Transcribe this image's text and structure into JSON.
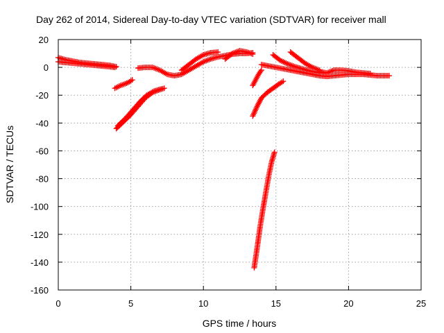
{
  "chart_data": {
    "type": "scatter",
    "title": "Day 262 of 2014, Sidereal Day-to-day VTEC variation (SDTVAR) for receiver mall",
    "xlabel": "GPS time / hours",
    "ylabel": "SDTVAR / TECUs",
    "xlim": [
      0,
      25
    ],
    "ylim": [
      -160,
      20
    ],
    "xticks": [
      "0",
      "5",
      "10",
      "15",
      "20",
      "25"
    ],
    "yticks": [
      "-160",
      "-140",
      "-120",
      "-100",
      "-80",
      "-60",
      "-40",
      "-20",
      "0",
      "20"
    ],
    "grid": true,
    "marker": "plus",
    "color": "#ff0000",
    "series": [
      {
        "x": [
          0.0,
          0.5,
          1.0,
          1.5,
          2.0,
          2.5,
          3.0,
          3.5,
          4.0
        ],
        "y": [
          7.0,
          5.5,
          4.5,
          3.5,
          3.0,
          2.5,
          2.0,
          1.5,
          0.5
        ]
      },
      {
        "x": [
          0.0,
          0.5,
          1.0,
          1.5,
          2.0,
          2.5,
          3.0,
          3.5,
          3.9
        ],
        "y": [
          4.0,
          3.5,
          3.0,
          2.5,
          2.0,
          1.5,
          1.0,
          0.5,
          0.0
        ]
      },
      {
        "x": [
          3.9,
          4.3,
          4.8,
          5.1
        ],
        "y": [
          -15.0,
          -13.0,
          -11.0,
          -9.0
        ]
      },
      {
        "x": [
          4.0,
          4.5,
          5.0,
          5.5,
          6.0,
          6.5,
          7.0,
          7.3
        ],
        "y": [
          -44.0,
          -39.0,
          -34.0,
          -28.0,
          -22.0,
          -18.0,
          -16.0,
          -15.0
        ]
      },
      {
        "x": [
          4.1,
          4.6,
          5.1,
          5.6,
          6.1,
          6.6,
          7.1
        ],
        "y": [
          -42.0,
          -37.0,
          -31.0,
          -25.0,
          -20.0,
          -17.0,
          -15.5
        ]
      },
      {
        "x": [
          5.5,
          6.0,
          6.5,
          7.0,
          7.5,
          8.0,
          8.5,
          9.0,
          9.5,
          10.0,
          10.5,
          11.0,
          11.5,
          12.0,
          12.5,
          13.0,
          13.4
        ],
        "y": [
          -0.5,
          0.0,
          0.0,
          -2.0,
          -5.0,
          -6.0,
          -5.0,
          -2.0,
          1.0,
          4.0,
          6.0,
          7.5,
          8.5,
          9.5,
          10.0,
          10.0,
          10.5
        ]
      },
      {
        "x": [
          8.5,
          9.0,
          9.5,
          10.0,
          10.5,
          11.0
        ],
        "y": [
          -2.0,
          2.0,
          6.0,
          9.0,
          10.5,
          11.0
        ]
      },
      {
        "x": [
          11.5,
          12.0,
          12.5,
          13.0,
          13.4
        ],
        "y": [
          6.0,
          10.0,
          12.0,
          11.0,
          9.5
        ]
      },
      {
        "x": [
          13.4,
          13.6,
          13.8,
          14.0
        ],
        "y": [
          -13.0,
          -9.0,
          -5.0,
          -2.0
        ]
      },
      {
        "x": [
          13.4,
          13.7,
          14.0,
          14.4,
          14.8,
          15.2,
          15.5
        ],
        "y": [
          -35.0,
          -28.0,
          -22.0,
          -18.0,
          -15.0,
          -12.0,
          -10.0
        ]
      },
      {
        "x": [
          13.5,
          13.7,
          13.9,
          14.1,
          14.3,
          14.5,
          14.7,
          14.9
        ],
        "y": [
          -144.0,
          -130.0,
          -115.0,
          -102.0,
          -90.0,
          -78.0,
          -68.0,
          -61.0
        ]
      },
      {
        "x": [
          14.0,
          14.5,
          15.0,
          15.5,
          16.0,
          16.5,
          17.0,
          17.5,
          18.0,
          18.5,
          19.0,
          19.5,
          20.0,
          20.5,
          21.0,
          21.5,
          22.0,
          22.5,
          22.8
        ],
        "y": [
          2.0,
          1.0,
          0.0,
          -1.0,
          -2.0,
          -3.0,
          -4.0,
          -5.0,
          -6.0,
          -6.5,
          -6.0,
          -5.5,
          -5.0,
          -5.0,
          -5.0,
          -5.5,
          -6.0,
          -6.0,
          -6.0
        ]
      },
      {
        "x": [
          14.8,
          15.3,
          15.8,
          16.3,
          16.8,
          17.3,
          17.8,
          18.3
        ],
        "y": [
          9.0,
          5.0,
          2.5,
          0.5,
          -1.0,
          -2.5,
          -3.5,
          -4.0
        ]
      },
      {
        "x": [
          16.0,
          16.5,
          17.0,
          17.5,
          18.0
        ],
        "y": [
          11.0,
          7.0,
          3.0,
          0.0,
          -2.0
        ]
      },
      {
        "x": [
          18.0,
          18.5,
          19.0,
          19.5,
          20.0,
          20.5,
          21.0,
          21.5
        ],
        "y": [
          -3.0,
          -4.0,
          -2.0,
          -2.0,
          -2.5,
          -3.5,
          -4.0,
          -4.5
        ]
      }
    ]
  }
}
